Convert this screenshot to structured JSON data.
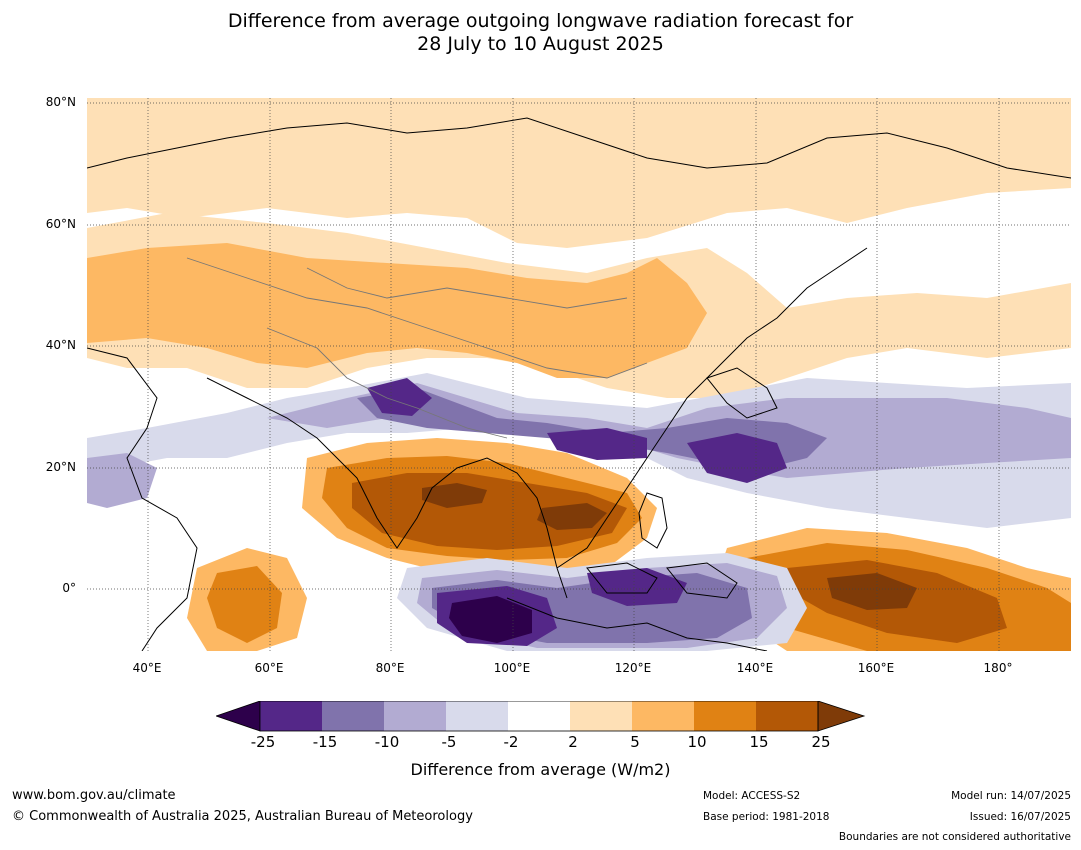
{
  "title_line1": "Difference from average outgoing longwave radiation forecast for",
  "title_line2": "28 July to 10 August 2025",
  "lat_labels": [
    "80°N",
    "60°N",
    "40°N",
    "20°N",
    "0°"
  ],
  "lon_labels": [
    "40°E",
    "60°E",
    "80°E",
    "100°E",
    "120°E",
    "140°E",
    "160°E",
    "180°"
  ],
  "map_extent": {
    "lon_range": [
      30,
      192
    ],
    "lat_range": [
      -10,
      81
    ]
  },
  "colorbar": {
    "ticks": [
      "-25",
      "-15",
      "-10",
      "-5",
      "-2",
      "2",
      "5",
      "10",
      "15",
      "25"
    ],
    "title": "Difference from average (W/m2)",
    "colors": {
      "below_-25": "#2d004b",
      "-25_-15": "#542788",
      "-15_-10": "#8073ac",
      "-10_-5": "#b2abd2",
      "-5_-2": "#d8daeb",
      "-2_2": "#ffffff",
      "2_5": "#fee0b6",
      "5_10": "#fdb863",
      "10_15": "#e08214",
      "15_25": "#b35806",
      "above_25": "#7f3b08"
    }
  },
  "footer": {
    "url": "www.bom.gov.au/climate",
    "copyright": "© Commonwealth of Australia 2025, Australian Bureau of Meteorology",
    "model": "Model: ACCESS-S2",
    "base_period": "Base period: 1981-2018",
    "model_run": "Model run: 14/07/2025",
    "issued": "Issued: 16/07/2025",
    "disclaimer": "Boundaries are not considered authoritative"
  }
}
